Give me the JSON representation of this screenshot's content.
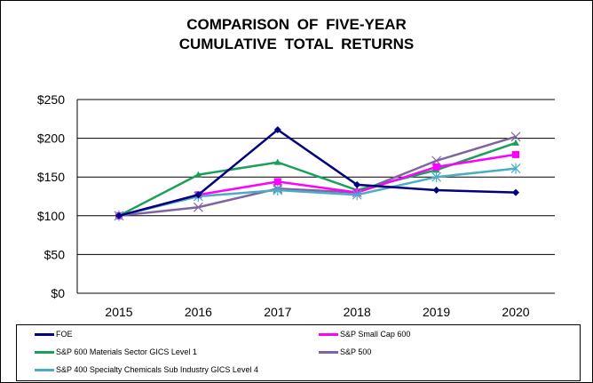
{
  "chart_data": {
    "type": "line",
    "title": [
      "COMPARISON OF FIVE-YEAR",
      "CUMULATIVE TOTAL RETURNS"
    ],
    "x": [
      "2015",
      "2016",
      "2017",
      "2018",
      "2019",
      "2020"
    ],
    "ylim": [
      0,
      250
    ],
    "yticks": [
      "$0",
      "$50",
      "$100",
      "$150",
      "$200",
      "$250"
    ],
    "ytick_values": [
      0,
      50,
      100,
      150,
      200,
      250
    ],
    "grid": true,
    "legend_placement": "bottom",
    "series": [
      {
        "name": "FOE",
        "color": "#000080",
        "marker": "diamond",
        "values": [
          100,
          127,
          211,
          140,
          133,
          130
        ]
      },
      {
        "name": "S&P Small Cap 600",
        "color": "#ff00ff",
        "marker": "square",
        "values": [
          100,
          127,
          144,
          130,
          163,
          179
        ]
      },
      {
        "name": "S&P 600 Materials Sector GICS Level 1",
        "color": "#1aa05a",
        "marker": "triangle",
        "values": [
          100,
          153,
          169,
          133,
          159,
          194
        ]
      },
      {
        "name": "S&P 500",
        "color": "#8064a2",
        "marker": "x",
        "values": [
          100,
          111,
          135,
          130,
          171,
          202
        ]
      },
      {
        "name": "S&P 400 Specialty Chemicals Sub Industry GICS Level 4",
        "color": "#4bacc6",
        "marker": "star",
        "values": [
          100,
          125,
          133,
          127,
          150,
          161
        ]
      }
    ]
  }
}
